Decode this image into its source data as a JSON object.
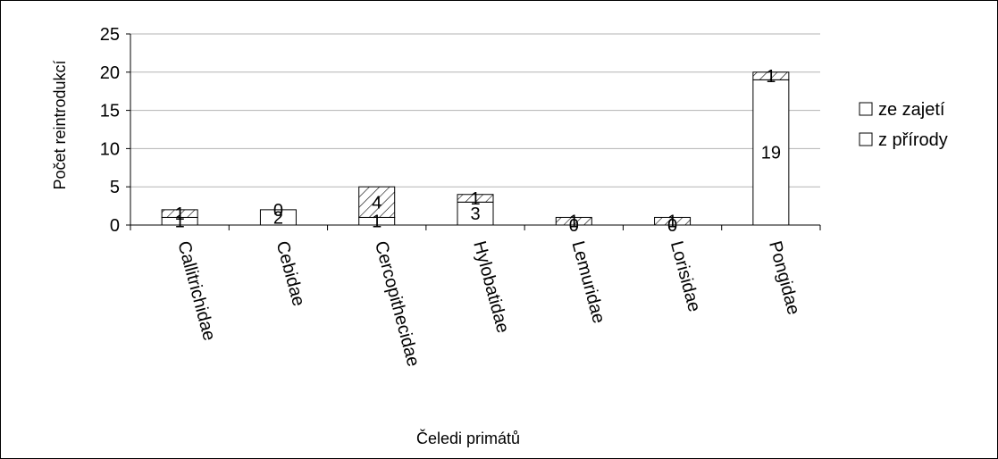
{
  "chart_data": {
    "type": "bar",
    "stacked": true,
    "categories": [
      "Callitrichidae",
      "Cebidae",
      "Cercopithecidae",
      "Hylobatidae",
      "Lemuridae",
      "Lorisidae",
      "Pongidae"
    ],
    "series": [
      {
        "name": "ze zajetí",
        "values": [
          1,
          2,
          1,
          3,
          0,
          0,
          19
        ],
        "fill": "#ffffff"
      },
      {
        "name": "z přírody",
        "values": [
          1,
          0,
          4,
          1,
          1,
          1,
          1
        ],
        "fill": "hatch"
      }
    ],
    "xlabel": "Čeledi primátů",
    "ylabel": "Počet reintrodukcí",
    "ylim": [
      0,
      25
    ],
    "yticks": [
      0,
      5,
      10,
      15,
      20,
      25
    ],
    "grid": true,
    "legend_position": "right",
    "colors": {
      "grid": "#b3b3b3",
      "axis": "#000000",
      "bar_border": "#000000"
    }
  }
}
